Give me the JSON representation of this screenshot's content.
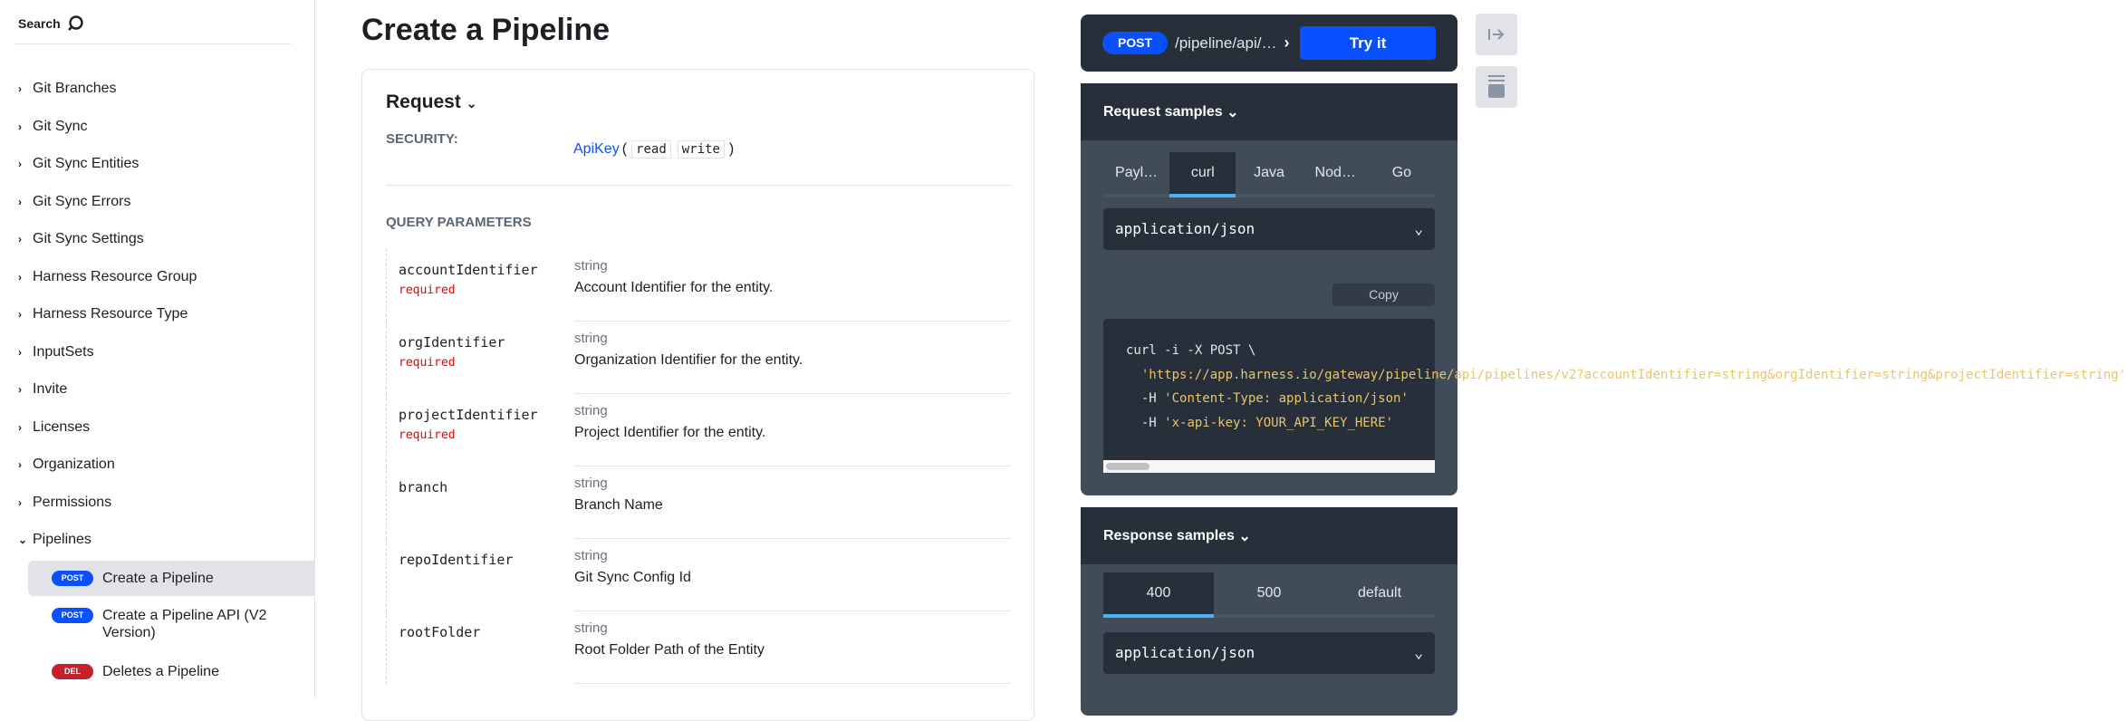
{
  "sidebar": {
    "search_label": "Search",
    "items": [
      {
        "label": "Git Branches"
      },
      {
        "label": "Git Sync"
      },
      {
        "label": "Git Sync Entities"
      },
      {
        "label": "Git Sync Errors"
      },
      {
        "label": "Git Sync Settings"
      },
      {
        "label": "Harness Resource Group"
      },
      {
        "label": "Harness Resource Type"
      },
      {
        "label": "InputSets"
      },
      {
        "label": "Invite"
      },
      {
        "label": "Licenses"
      },
      {
        "label": "Organization"
      },
      {
        "label": "Permissions"
      },
      {
        "label": "Pipelines"
      }
    ],
    "sub_items": [
      {
        "method": "POST",
        "label": "Create a Pipeline",
        "selected": true
      },
      {
        "method": "POST",
        "label": "Create a Pipeline API (V2 Version)"
      },
      {
        "method": "DEL",
        "label": "Deletes a Pipeline"
      }
    ]
  },
  "main": {
    "title": "Create a Pipeline",
    "request_label": "Request",
    "security_label": "SECURITY:",
    "security_scheme": "ApiKey",
    "scopes": [
      "read",
      "write"
    ],
    "query_params_label": "QUERY PARAMETERS",
    "params": [
      {
        "name": "accountIdentifier",
        "required": "required",
        "type": "string",
        "desc": "Account Identifier for the entity."
      },
      {
        "name": "orgIdentifier",
        "required": "required",
        "type": "string",
        "desc": "Organization Identifier for the entity."
      },
      {
        "name": "projectIdentifier",
        "required": "required",
        "type": "string",
        "desc": "Project Identifier for the entity."
      },
      {
        "name": "branch",
        "type": "string",
        "desc": "Branch Name"
      },
      {
        "name": "repoIdentifier",
        "type": "string",
        "desc": "Git Sync Config Id"
      },
      {
        "name": "rootFolder",
        "type": "string",
        "desc": "Root Folder Path of the Entity"
      }
    ]
  },
  "right": {
    "method": "POST",
    "path": "/pipeline/api/…",
    "try_label": "Try it",
    "request_samples_label": "Request samples",
    "request_tabs": [
      "Payl…",
      "curl",
      "Java",
      "Nod…",
      "Go"
    ],
    "request_active": "curl",
    "content_type": "application/json",
    "copy_label": "Copy",
    "code": {
      "l1": "curl -i -X POST \\",
      "l2": "'https://app.harness.io/gateway/pipeline/api/pipelines/v2?accountIdentifier=string&orgIdentifier=string&projectIdentifier=string'",
      "l3a": "-H ",
      "l3": "'Content-Type: application/json'",
      "l4a": "-H ",
      "l4": "'x-api-key: YOUR_API_KEY_HERE'"
    },
    "response_samples_label": "Response samples",
    "response_tabs": [
      "400",
      "500",
      "default"
    ],
    "response_active": "400",
    "response_content_type": "application/json"
  },
  "colors": {
    "post": "#0a50ff",
    "delete": "#c6202c",
    "panel_dark": "#262f3a",
    "panel_mid": "#414c5a",
    "tab_active": "#4bb0f5"
  }
}
